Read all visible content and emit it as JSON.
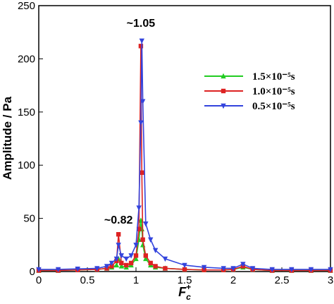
{
  "chart_data": {
    "type": "line",
    "x_label": "F",
    "x_label_sub": "c",
    "x_label_sup": "+",
    "y_label": "Amplitude / Pa",
    "annotations": [
      {
        "text": "~1.05",
        "x": 1.05,
        "y": 230
      },
      {
        "text": "~0.82",
        "x": 0.82,
        "y": 45
      }
    ],
    "x": [
      0,
      0.2,
      0.4,
      0.6,
      0.7,
      0.75,
      0.8,
      0.82,
      0.85,
      0.9,
      0.95,
      1.0,
      1.03,
      1.05,
      1.06,
      1.07,
      1.1,
      1.15,
      1.2,
      1.3,
      1.5,
      1.7,
      1.9,
      2.0,
      2.1,
      2.2,
      2.4,
      2.6,
      2.8,
      3.0
    ],
    "series": [
      {
        "name": "1.5×10⁻⁵s",
        "color": "#22cc22",
        "marker": "triangle-up",
        "values": [
          1,
          1,
          1.5,
          2,
          3,
          4,
          6,
          12,
          5,
          4,
          6,
          12,
          30,
          48,
          40,
          25,
          12,
          6,
          4,
          3,
          2,
          1.5,
          1.5,
          2,
          4,
          2,
          1,
          1,
          1,
          1
        ]
      },
      {
        "name": "1.0×10⁻⁵s",
        "color": "#dd2222",
        "marker": "square",
        "values": [
          1,
          1,
          1.5,
          2,
          3,
          5,
          10,
          35,
          8,
          6,
          8,
          15,
          40,
          212,
          93,
          30,
          15,
          8,
          5,
          3,
          2,
          1.5,
          1.5,
          2,
          5,
          2,
          1,
          1,
          1,
          1
        ]
      },
      {
        "name": "0.5×10⁻⁵s",
        "color": "#3344dd",
        "marker": "triangle-down",
        "values": [
          2,
          2,
          2.5,
          3,
          5,
          8,
          12,
          25,
          15,
          12,
          15,
          25,
          60,
          140,
          217,
          160,
          45,
          30,
          20,
          12,
          6,
          4,
          3,
          3,
          7,
          3,
          2,
          2,
          2,
          2
        ]
      }
    ],
    "xlim": [
      0,
      3
    ],
    "xticks": [
      0,
      0.5,
      1,
      1.5,
      2,
      2.5,
      3
    ],
    "ylim": [
      0,
      250
    ],
    "yticks": [
      0,
      50,
      100,
      150,
      200,
      250
    ]
  }
}
